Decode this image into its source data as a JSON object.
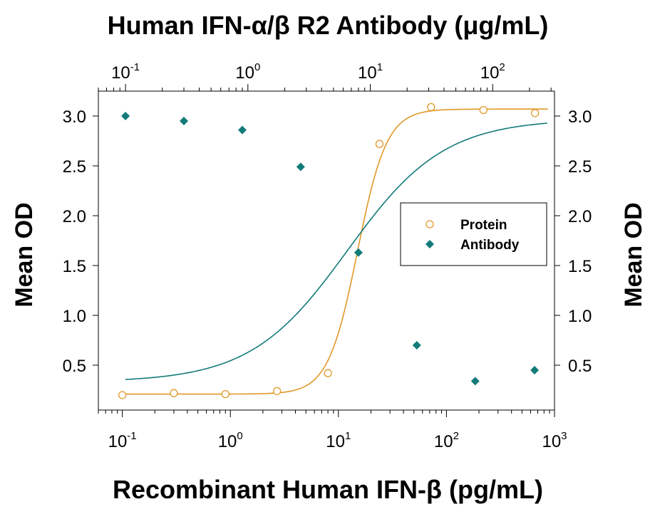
{
  "chart_data": {
    "type": "scatter",
    "title": "Human IFN-α/β R2 Antibody (μg/mL)",
    "xlabel": "Recombinant Human IFN-β (pg/mL)",
    "ylabel": "Mean OD",
    "ylabel_right": "Mean OD",
    "x_scale": "log",
    "xlim": [
      0.06,
      1000
    ],
    "x_ticks": [
      {
        "base": "10",
        "exp": "-1",
        "value": 0.1
      },
      {
        "base": "10",
        "exp": "0",
        "value": 1
      },
      {
        "base": "10",
        "exp": "1",
        "value": 10
      },
      {
        "base": "10",
        "exp": "2",
        "value": 100
      },
      {
        "base": "10",
        "exp": "3",
        "value": 1000
      }
    ],
    "x2_scale": "log",
    "x2lim": [
      0.06,
      320
    ],
    "x2_ticks": [
      {
        "base": "10",
        "exp": "-1",
        "value": 0.1
      },
      {
        "base": "10",
        "exp": "0",
        "value": 1
      },
      {
        "base": "10",
        "exp": "1",
        "value": 10
      },
      {
        "base": "10",
        "exp": "2",
        "value": 100
      }
    ],
    "ylim": [
      0.05,
      3.25
    ],
    "y_ticks": [
      "0.5",
      "1.0",
      "1.5",
      "2.0",
      "2.5",
      "3.0"
    ],
    "grid": false,
    "legend": {
      "position": "right",
      "entries": [
        "Protein",
        "Antibody"
      ]
    },
    "series": [
      {
        "name": "Protein",
        "axis": "bottom",
        "marker": "open-circle",
        "color": "#E0982A",
        "x": [
          0.1,
          0.3,
          0.9,
          2.7,
          8,
          24,
          72,
          220,
          660
        ],
        "y": [
          0.2,
          0.22,
          0.21,
          0.24,
          0.42,
          2.72,
          3.09,
          3.06,
          3.03
        ]
      },
      {
        "name": "Antibody",
        "axis": "top",
        "marker": "filled-diamond",
        "color": "#137B78",
        "x": [
          0.1,
          0.3,
          0.9,
          2.7,
          8,
          24,
          72,
          220
        ],
        "y": [
          3.0,
          2.95,
          2.86,
          2.49,
          1.63,
          0.7,
          0.34,
          0.45
        ]
      }
    ],
    "fits": [
      {
        "series": "Protein",
        "bottom": 0.21,
        "top": 3.07,
        "ec50": 15,
        "hill": 3.2
      },
      {
        "series": "Antibody",
        "bottom": 0.33,
        "top": 2.97,
        "ec50": 6.5,
        "hill": 1.1
      }
    ]
  }
}
